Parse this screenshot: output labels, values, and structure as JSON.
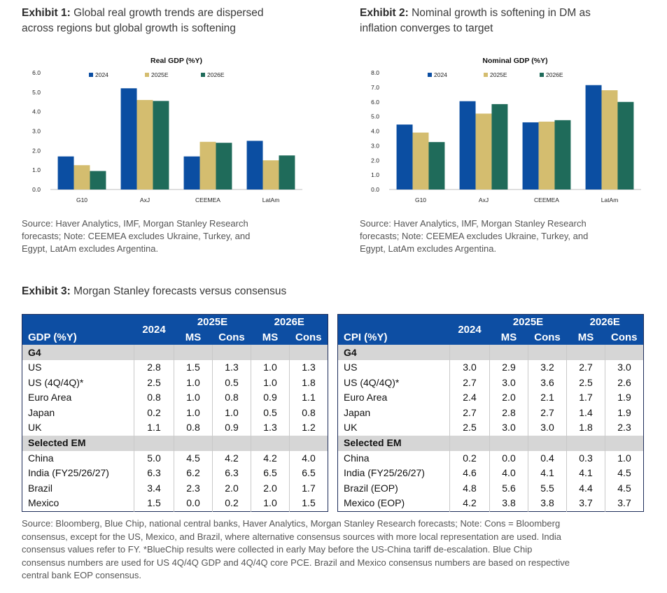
{
  "exhibit1": {
    "label": "Exhibit 1:",
    "title_line1": " Global real growth trends are dispersed",
    "title_line2": "across regions but global growth is softening",
    "source_lines": [
      "Source: Haver Analytics, IMF, Morgan Stanley Research",
      "forecasts; Note: CEEMEA excludes Ukraine, Turkey, and",
      "Egypt, LatAm excludes Argentina."
    ]
  },
  "exhibit2": {
    "label": "Exhibit 2:",
    "title_line1": " Nominal growth is softening in DM as",
    "title_line2": "inflation converges to target",
    "source_lines": [
      "Source: Haver Analytics, IMF, Morgan Stanley Research",
      "forecasts; Note: CEEMEA excludes Ukraine, Turkey, and",
      "Egypt, LatAm excludes Argentina."
    ]
  },
  "exhibit3": {
    "label": "Exhibit 3:",
    "title": " Morgan Stanley forecasts versus consensus"
  },
  "colors": {
    "s2024": "#0b4ea2",
    "s2025E": "#d4bd6f",
    "s2026E": "#1f6b5a",
    "table_header": "#0d4ea3",
    "section": "#d6d6d6"
  },
  "chart_data": [
    {
      "type": "bar",
      "title": "Real GDP (%Y)",
      "categories": [
        "G10",
        "AxJ",
        "CEEMEA",
        "LatAm"
      ],
      "series": [
        {
          "name": "2024",
          "values": [
            1.7,
            5.2,
            1.7,
            2.5
          ]
        },
        {
          "name": "2025E",
          "values": [
            1.25,
            4.6,
            2.45,
            1.5
          ]
        },
        {
          "name": "2026E",
          "values": [
            0.95,
            4.55,
            2.4,
            1.75
          ]
        }
      ],
      "yticks": [
        "0.0",
        "1.0",
        "2.0",
        "3.0",
        "4.0",
        "5.0",
        "6.0"
      ],
      "ylim": [
        0,
        6
      ],
      "xlabel": "",
      "ylabel": "",
      "legend": "top"
    },
    {
      "type": "bar",
      "title": "Nominal GDP (%Y)",
      "categories": [
        "G10",
        "AxJ",
        "CEEMEA",
        "LatAm"
      ],
      "series": [
        {
          "name": "2024",
          "values": [
            4.45,
            6.05,
            4.6,
            7.15
          ]
        },
        {
          "name": "2025E",
          "values": [
            3.9,
            5.2,
            4.65,
            6.8
          ]
        },
        {
          "name": "2026E",
          "values": [
            3.25,
            5.85,
            4.75,
            6.0
          ]
        }
      ],
      "yticks": [
        "0.0",
        "1.0",
        "2.0",
        "3.0",
        "4.0",
        "5.0",
        "6.0",
        "7.0",
        "8.0"
      ],
      "ylim": [
        0,
        8
      ],
      "xlabel": "",
      "ylabel": "",
      "legend": "top"
    },
    {
      "type": "table",
      "title": "GDP (%Y)",
      "header_top": [
        "2024",
        "2025E",
        "2026E"
      ],
      "header_sub": [
        "MS",
        "Cons",
        "MS",
        "Cons"
      ],
      "sections": [
        {
          "name": "G4",
          "rows": [
            [
              "US",
              "2.8",
              "1.5",
              "1.3",
              "1.0",
              "1.3"
            ],
            [
              "US (4Q/4Q)*",
              "2.5",
              "1.0",
              "0.5",
              "1.0",
              "1.8"
            ],
            [
              "Euro Area",
              "0.8",
              "1.0",
              "0.8",
              "0.9",
              "1.1"
            ],
            [
              "Japan",
              "0.2",
              "1.0",
              "1.0",
              "0.5",
              "0.8"
            ],
            [
              "UK",
              "1.1",
              "0.8",
              "0.9",
              "1.3",
              "1.2"
            ]
          ]
        },
        {
          "name": "Selected EM",
          "rows": [
            [
              "China",
              "5.0",
              "4.5",
              "4.2",
              "4.2",
              "4.0"
            ],
            [
              "India (FY25/26/27)",
              "6.3",
              "6.2",
              "6.3",
              "6.5",
              "6.5"
            ],
            [
              "Brazil",
              "3.4",
              "2.3",
              "2.0",
              "2.0",
              "1.7"
            ],
            [
              "Mexico",
              "1.5",
              "0.0",
              "0.2",
              "1.0",
              "1.5"
            ]
          ]
        }
      ]
    },
    {
      "type": "table",
      "title": "CPI (%Y)",
      "header_top": [
        "2024",
        "2025E",
        "2026E"
      ],
      "header_sub": [
        "MS",
        "Cons",
        "MS",
        "Cons"
      ],
      "sections": [
        {
          "name": "G4",
          "rows": [
            [
              "US",
              "3.0",
              "2.9",
              "3.2",
              "2.7",
              "3.0"
            ],
            [
              "US (4Q/4Q)*",
              "2.7",
              "3.0",
              "3.6",
              "2.5",
              "2.6"
            ],
            [
              "Euro Area",
              "2.4",
              "2.0",
              "2.1",
              "1.7",
              "1.9"
            ],
            [
              "Japan",
              "2.7",
              "2.8",
              "2.7",
              "1.4",
              "1.9"
            ],
            [
              "UK",
              "2.5",
              "3.0",
              "3.0",
              "1.8",
              "2.3"
            ]
          ]
        },
        {
          "name": "Selected EM",
          "rows": [
            [
              "China",
              "0.2",
              "0.0",
              "0.4",
              "0.3",
              "1.0"
            ],
            [
              "India (FY25/26/27)",
              "4.6",
              "4.0",
              "4.1",
              "4.1",
              "4.5"
            ],
            [
              "Brazil (EOP)",
              "4.8",
              "5.6",
              "5.5",
              "4.4",
              "4.5"
            ],
            [
              "Mexico (EOP)",
              "4.2",
              "3.8",
              "3.8",
              "3.7",
              "3.7"
            ]
          ]
        }
      ]
    }
  ],
  "footer_lines": [
    "Source: Bloomberg, Blue Chip, national central banks, Haver Analytics, Morgan Stanley Research forecasts; Note: Cons = Bloomberg",
    "consensus, except for the US, Mexico, and Brazil, where alternative consensus sources with more local representation are used. India",
    "consensus values refer to FY. *BlueChip results were collected in early May before the US-China tariff de-escalation. Blue Chip",
    "consensus numbers are used for US 4Q/4Q GDP and 4Q/4Q core PCE. Brazil and Mexico consensus numbers are based on respective",
    "central bank EOP consensus."
  ]
}
